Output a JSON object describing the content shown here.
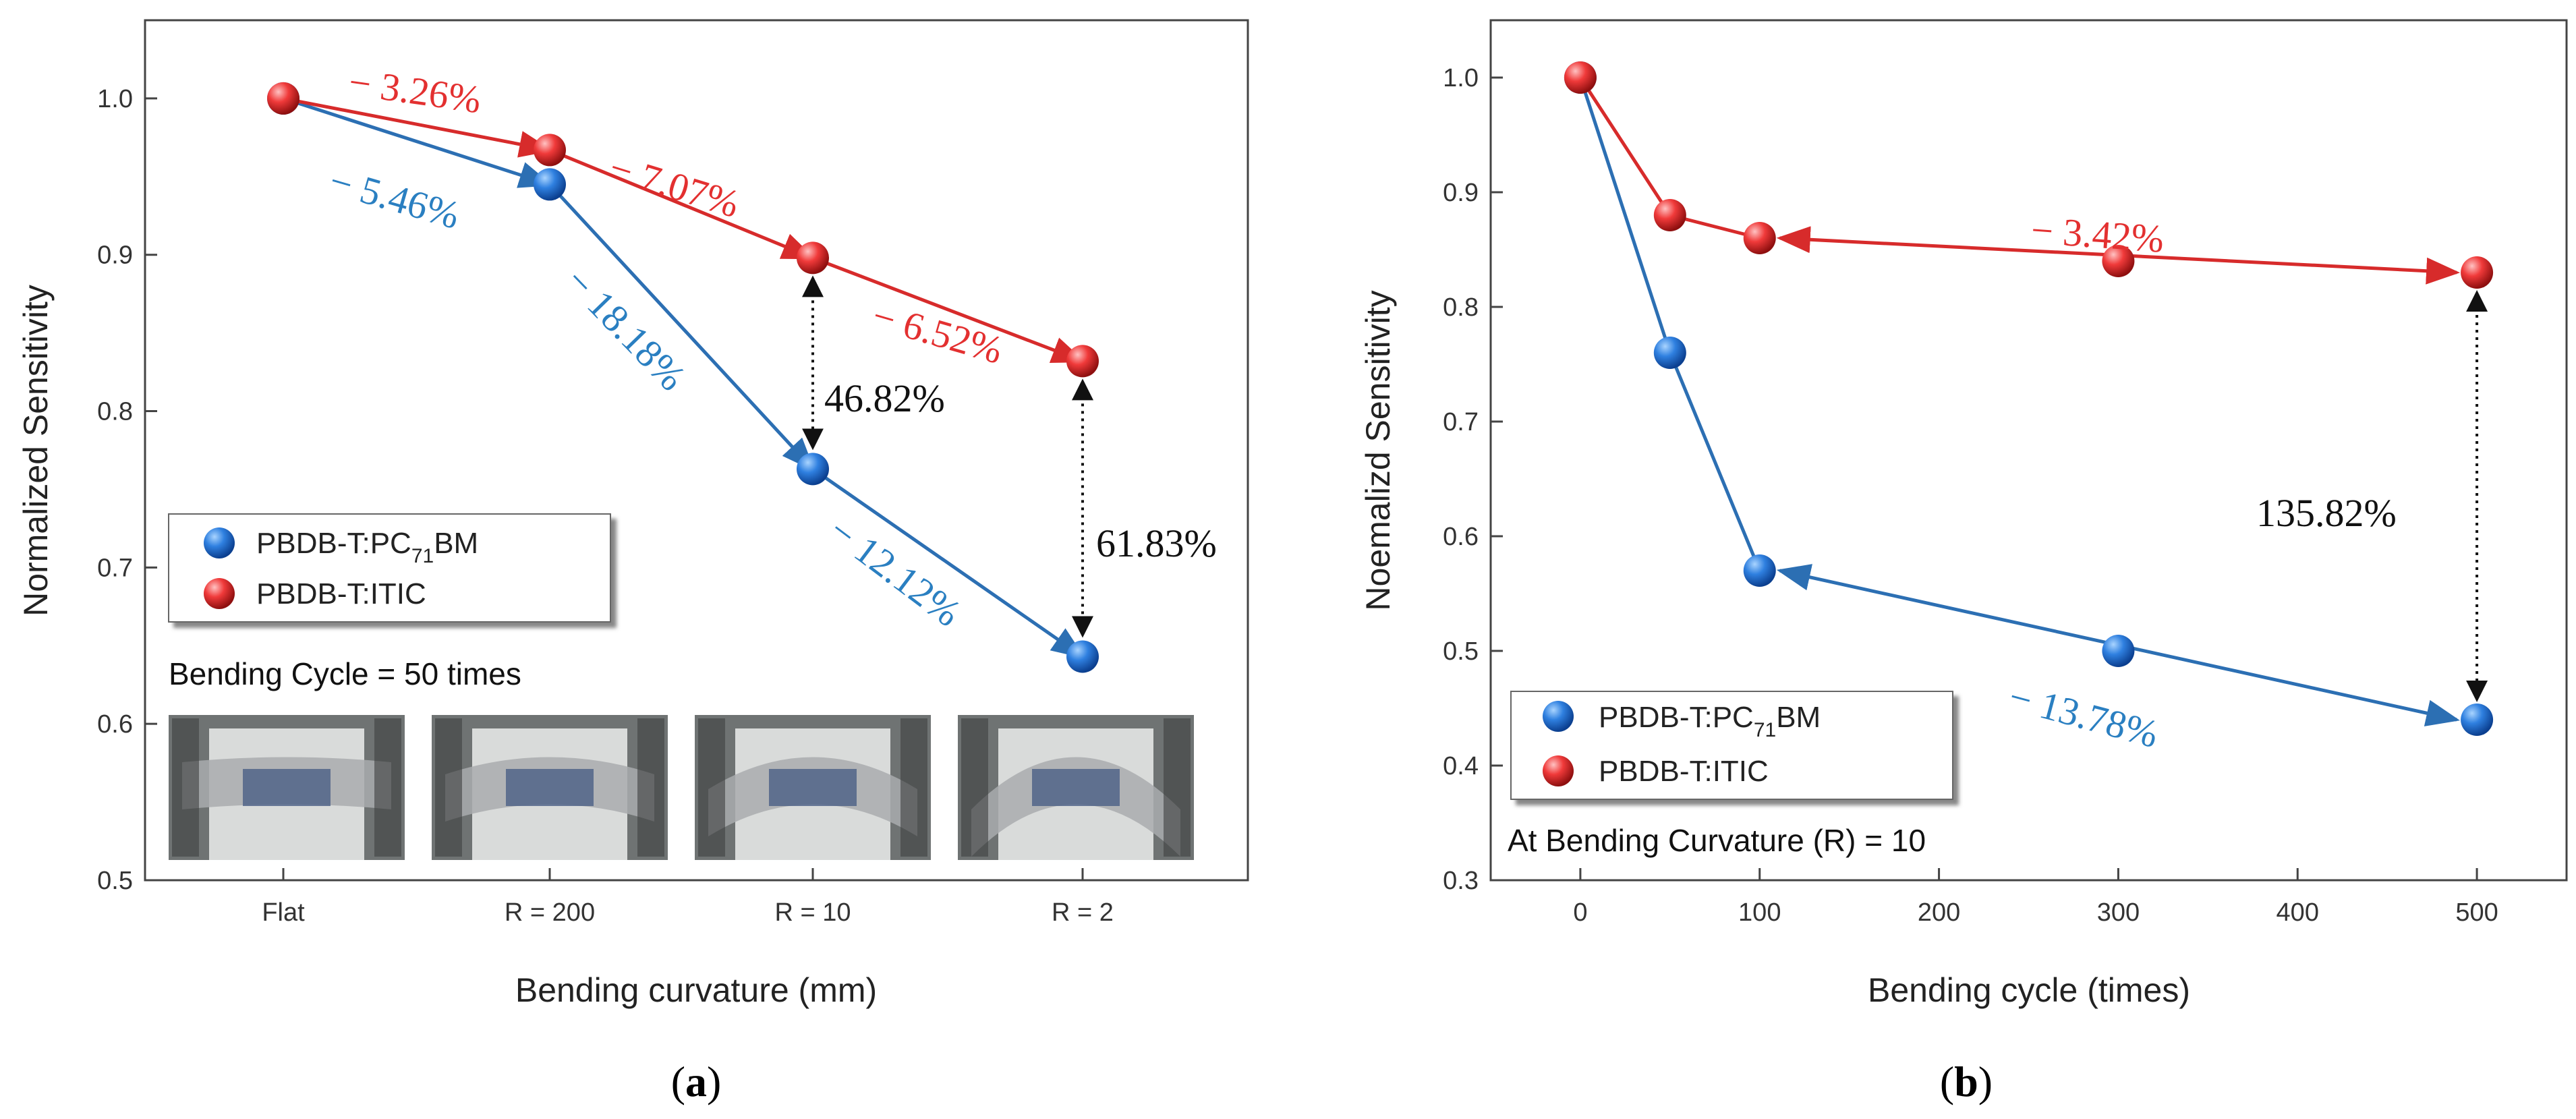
{
  "colors": {
    "blue": "#1565c0",
    "blue_line": "#2c6fb3",
    "blue_text": "#2a7fc1",
    "red": "#e02424",
    "red_line": "#d72b2b",
    "red_text": "#e33030",
    "frame": "#444444",
    "arrow_black": "#111111"
  },
  "chart_data": [
    {
      "panel": "(a)",
      "type": "line",
      "title": "",
      "xlabel": "Bending curvature (mm)",
      "ylabel": "Normalized Sensitivity",
      "categories": [
        "Flat",
        "R = 200",
        "R = 10",
        "R = 2"
      ],
      "ylim": [
        0.5,
        1.05
      ],
      "yticks": [
        0.5,
        0.6,
        0.7,
        0.8,
        0.9,
        1.0
      ],
      "ytick_labels": [
        "0.5",
        "0.6",
        "0.7",
        "0.8",
        "0.9",
        "1.0"
      ],
      "series": [
        {
          "name": "PBDB-T:PC71BM",
          "name_main": "PBDB-T:PC",
          "name_sub": "71",
          "name_end": "BM",
          "color": "blue",
          "values": [
            1.0,
            0.945,
            0.763,
            0.643
          ]
        },
        {
          "name": "PBDB-T:ITIC",
          "color": "red",
          "values": [
            1.0,
            0.967,
            0.898,
            0.832
          ]
        }
      ],
      "segment_labels": [
        {
          "series": 1,
          "text": "− 3.26%"
        },
        {
          "series": 1,
          "text": "− 7.07%"
        },
        {
          "series": 1,
          "text": "− 6.52%"
        },
        {
          "series": 0,
          "text": "− 5.46%"
        },
        {
          "series": 0,
          "text": "− 18.18%"
        },
        {
          "series": 0,
          "text": "− 12.12%"
        }
      ],
      "gap_labels": [
        {
          "category": "R = 10",
          "text": "46.82%"
        },
        {
          "category": "R = 2",
          "text": "61.83%"
        }
      ],
      "note": "Bending Cycle = 50 times",
      "legend": "left"
    },
    {
      "panel": "(b)",
      "type": "line",
      "title": "",
      "xlabel": "Bending cycle (times)",
      "ylabel": "Noemalizd Sensitivity",
      "xlim": [
        -50,
        550
      ],
      "xticks": [
        0,
        100,
        200,
        300,
        400,
        500
      ],
      "xtick_labels": [
        "0",
        "100",
        "200",
        "300",
        "400",
        "500"
      ],
      "ylim": [
        0.3,
        1.05
      ],
      "yticks": [
        0.3,
        0.4,
        0.5,
        0.6,
        0.7,
        0.8,
        0.9,
        1.0
      ],
      "ytick_labels": [
        "0.3",
        "0.4",
        "0.5",
        "0.6",
        "0.7",
        "0.8",
        "0.9",
        "1.0"
      ],
      "series": [
        {
          "name": "PBDB-T:PC71BM",
          "name_main": "PBDB-T:PC",
          "name_sub": "71",
          "name_end": "BM",
          "color": "blue",
          "x": [
            0,
            50,
            100,
            300,
            500
          ],
          "values": [
            1.0,
            0.76,
            0.57,
            0.5,
            0.44
          ]
        },
        {
          "name": "PBDB-T:ITIC",
          "color": "red",
          "x": [
            0,
            50,
            100,
            300,
            500
          ],
          "values": [
            1.0,
            0.88,
            0.86,
            0.84,
            0.83
          ]
        }
      ],
      "span_labels": [
        {
          "series": 1,
          "text": "− 3.42%"
        },
        {
          "series": 0,
          "text": "− 13.78%"
        }
      ],
      "gap_labels": [
        {
          "x": 500,
          "text": "135.82%"
        }
      ],
      "note": "At Bending Curvature (R) = 10",
      "legend": "bottom-left"
    }
  ]
}
